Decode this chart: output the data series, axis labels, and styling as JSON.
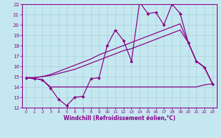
{
  "xlabel": "Windchill (Refroidissement éolien,°C)",
  "bg_color": "#c5e8f0",
  "grid_color": "#a8cdd8",
  "line_color": "#880088",
  "xlim": [
    -0.5,
    23.5
  ],
  "ylim": [
    12,
    22
  ],
  "xticks": [
    0,
    1,
    2,
    3,
    4,
    5,
    6,
    7,
    8,
    9,
    10,
    11,
    12,
    13,
    14,
    15,
    16,
    17,
    18,
    19,
    20,
    21,
    22,
    23
  ],
  "yticks": [
    12,
    13,
    14,
    15,
    16,
    17,
    18,
    19,
    20,
    21,
    22
  ],
  "line1_x": [
    0,
    1,
    2,
    3,
    4,
    5,
    6,
    7,
    8,
    9,
    10,
    11,
    12,
    13,
    14,
    15,
    16,
    17,
    18,
    19,
    20,
    21,
    22,
    23
  ],
  "line1_y": [
    14.9,
    14.8,
    14.7,
    13.9,
    12.8,
    12.2,
    13.0,
    13.1,
    14.8,
    14.9,
    18.0,
    19.5,
    18.5,
    16.5,
    22.2,
    21.1,
    21.2,
    20.0,
    22.0,
    21.1,
    18.3,
    16.5,
    15.9,
    14.3
  ],
  "line2_x": [
    0,
    1,
    2,
    3,
    4,
    5,
    6,
    7,
    8,
    9,
    10,
    11,
    12,
    13,
    14,
    15,
    16,
    17,
    18,
    19,
    20,
    21,
    22,
    23
  ],
  "line2_y": [
    14.9,
    14.8,
    14.7,
    14.0,
    14.0,
    14.0,
    14.0,
    14.0,
    14.0,
    14.0,
    14.0,
    14.0,
    14.0,
    14.0,
    14.0,
    14.0,
    14.0,
    14.0,
    14.0,
    14.0,
    14.0,
    14.0,
    14.2,
    14.3
  ],
  "line3_x": [
    0,
    1,
    2,
    3,
    4,
    5,
    6,
    7,
    8,
    9,
    10,
    11,
    12,
    13,
    14,
    15,
    16,
    17,
    18,
    19,
    20,
    21,
    22,
    23
  ],
  "line3_y": [
    14.9,
    14.9,
    15.0,
    15.1,
    15.3,
    15.5,
    15.7,
    16.0,
    16.3,
    16.6,
    16.9,
    17.2,
    17.5,
    17.7,
    18.0,
    18.3,
    18.6,
    18.9,
    19.2,
    19.5,
    18.3,
    16.5,
    15.9,
    14.3
  ],
  "line4_x": [
    0,
    1,
    2,
    3,
    4,
    5,
    6,
    7,
    8,
    9,
    10,
    11,
    12,
    13,
    14,
    15,
    16,
    17,
    18,
    19,
    20,
    21,
    22,
    23
  ],
  "line4_y": [
    14.9,
    14.9,
    15.0,
    15.2,
    15.5,
    15.8,
    16.1,
    16.4,
    16.7,
    17.1,
    17.4,
    17.7,
    18.0,
    18.3,
    18.6,
    18.9,
    19.2,
    19.5,
    19.8,
    20.1,
    18.3,
    16.5,
    15.9,
    14.3
  ]
}
